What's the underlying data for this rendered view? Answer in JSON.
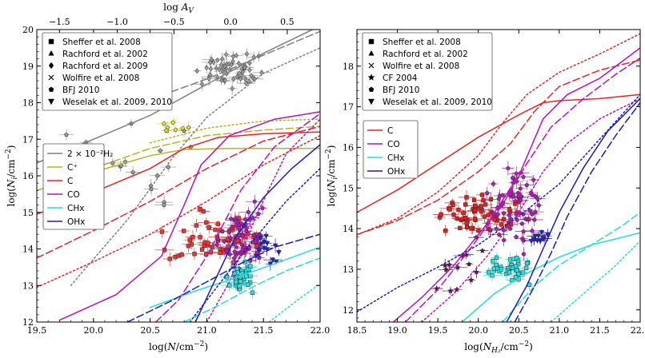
{
  "chart_data": [
    {
      "type": "scatter",
      "panel": "left",
      "xlabel": "log(N/cm⁻²)",
      "ylabel": "log(Nᵢ/cm⁻²)",
      "top_label": "log A_V",
      "xlim": [
        19.5,
        22.0
      ],
      "ylim": [
        12,
        20
      ],
      "top_ticks": [
        {
          "value": 19.7,
          "label": "−1.5"
        },
        {
          "value": 20.21,
          "label": "−1.0"
        },
        {
          "value": 20.71,
          "label": "−0.5"
        },
        {
          "value": 21.21,
          "label": "0.0"
        },
        {
          "value": 21.71,
          "label": "0.5"
        }
      ],
      "x_ticks": [
        "19.5",
        "20.0",
        "20.5",
        "21.0",
        "21.5",
        "22.0"
      ],
      "y_ticks": [
        "12",
        "13",
        "14",
        "15",
        "16",
        "17",
        "18",
        "19",
        "20"
      ],
      "marker_legend": [
        "Sheffer et al. 2008",
        "Rachford et al. 2002",
        "Rachford et al. 2009",
        "Wolfire et al. 2008",
        "BFJ 2010",
        "Weselak et al. 2009, 2010"
      ],
      "species_legend": [
        {
          "name": "2 × 10⁻²H₂",
          "color": "#808080"
        },
        {
          "name": "C⁺",
          "color": "#b5b520"
        },
        {
          "name": "C",
          "color": "#ee2222"
        },
        {
          "name": "CO",
          "color": "#bb11bb"
        },
        {
          "name": "CHx",
          "color": "#22dddd"
        },
        {
          "name": "OHx",
          "color": "#1a1acc"
        }
      ],
      "series": [
        {
          "name": "H2 model",
          "color": "#808080",
          "styles": [
            {
              "style": "solid",
              "x": [
                19.5,
                20.5,
                21.0,
                21.5,
                22.0
              ],
              "y": [
                16.35,
                17.65,
                18.5,
                19.35,
                20.1
              ]
            },
            {
              "style": "dashed",
              "x": [
                20.6,
                21.0,
                21.5,
                22.0
              ],
              "y": [
                18.2,
                18.65,
                19.3,
                19.95
              ]
            },
            {
              "style": "dotted",
              "x": [
                19.8,
                20.3,
                20.7,
                21.0,
                21.5,
                22.0
              ],
              "y": [
                13.0,
                14.8,
                16.5,
                17.6,
                18.8,
                19.5
              ]
            }
          ]
        },
        {
          "name": "C+ model",
          "color": "#b5b520",
          "styles": [
            {
              "style": "solid",
              "x": [
                19.5,
                20.0,
                20.5,
                20.8,
                21.2,
                22.0
              ],
              "y": [
                15.6,
                16.1,
                16.55,
                16.72,
                16.75,
                16.75
              ]
            },
            {
              "style": "dashed",
              "x": [
                20.0,
                20.5,
                21.0,
                21.5,
                22.0
              ],
              "y": [
                16.2,
                16.75,
                17.1,
                17.25,
                17.35
              ]
            },
            {
              "style": "dotted",
              "x": [
                20.5,
                21.0,
                21.5,
                22.0
              ],
              "y": [
                16.9,
                17.3,
                17.5,
                17.55
              ]
            }
          ]
        },
        {
          "name": "C model",
          "color": "#ee2222",
          "styles": [
            {
              "style": "solid",
              "x": [
                19.5,
                20.0,
                20.5,
                20.8,
                21.1,
                21.5,
                22.0
              ],
              "y": [
                14.95,
                15.55,
                16.2,
                16.75,
                17.05,
                17.15,
                17.2
              ]
            },
            {
              "style": "dashed",
              "x": [
                19.5,
                20.0,
                20.5,
                21.0,
                21.5,
                22.0
              ],
              "y": [
                13.75,
                14.5,
                15.3,
                16.2,
                16.95,
                17.35
              ]
            },
            {
              "style": "dotted",
              "x": [
                19.5,
                20.0,
                20.5,
                21.0,
                21.5,
                22.0
              ],
              "y": [
                12.95,
                13.65,
                14.4,
                15.3,
                16.3,
                17.1
              ]
            }
          ]
        },
        {
          "name": "CO model",
          "color": "#bb11bb",
          "styles": [
            {
              "style": "solid",
              "x": [
                19.7,
                20.2,
                20.6,
                20.8,
                20.95,
                21.2,
                21.6,
                22.0
              ],
              "y": [
                12.05,
                12.75,
                13.8,
                15.2,
                16.3,
                17.1,
                17.55,
                17.75
              ]
            },
            {
              "style": "dashed",
              "x": [
                20.55,
                20.75,
                21.0,
                21.3,
                21.6,
                22.0
              ],
              "y": [
                12.0,
                12.6,
                13.8,
                15.6,
                16.8,
                17.7
              ]
            },
            {
              "style": "dotted",
              "x": [
                21.0,
                21.2,
                21.45,
                21.7,
                22.0
              ],
              "y": [
                12.0,
                13.1,
                15.0,
                16.6,
                17.55
              ]
            }
          ]
        },
        {
          "name": "CHx model",
          "color": "#22dddd",
          "styles": [
            {
              "style": "solid",
              "x": [
                20.5,
                20.9,
                21.2,
                21.6,
                22.0
              ],
              "y": [
                12.4,
                12.85,
                13.15,
                13.6,
                14.05
              ]
            },
            {
              "style": "dashed",
              "x": [
                20.8,
                21.1,
                21.4,
                21.7,
                22.0
              ],
              "y": [
                12.0,
                12.45,
                12.95,
                13.4,
                13.75
              ]
            },
            {
              "style": "dotted",
              "x": [
                21.55,
                21.8,
                22.0
              ],
              "y": [
                12.0,
                12.6,
                13.05
              ]
            }
          ]
        },
        {
          "name": "OHx model",
          "color": "#1a1acc",
          "styles": [
            {
              "style": "solid",
              "x": [
                20.9,
                21.05,
                21.25,
                21.5,
                21.75,
                22.0
              ],
              "y": [
                12.0,
                13.0,
                14.3,
                15.4,
                16.2,
                16.85
              ]
            },
            {
              "style": "dashed",
              "x": [
                20.3,
                20.7,
                21.0,
                21.3,
                21.6,
                22.0
              ],
              "y": [
                12.0,
                12.6,
                13.1,
                13.6,
                14.05,
                14.4
              ]
            },
            {
              "style": "dotted",
              "x": [
                20.85,
                21.1,
                21.4,
                21.7,
                22.0
              ],
              "y": [
                12.0,
                13.0,
                14.2,
                15.3,
                16.2
              ]
            }
          ]
        }
      ]
    },
    {
      "type": "scatter",
      "panel": "right",
      "xlabel": "log(N_H₂/cm⁻²)",
      "ylabel": "log(Nᵢ/cm⁻²)",
      "xlim": [
        18.5,
        22.0
      ],
      "ylim": [
        11.7,
        18.9
      ],
      "x_ticks": [
        "18.5",
        "19.0",
        "19.5",
        "20.0",
        "20.5",
        "21.0",
        "21.5",
        "22.0"
      ],
      "y_ticks": [
        "12",
        "13",
        "14",
        "15",
        "16",
        "17",
        "18"
      ],
      "marker_legend": [
        "Sheffer et al. 2008",
        "Rachford et al. 2002",
        "Wolfire et al. 2008",
        "CF 2004",
        "BFJ 2010",
        "Weselak et al. 2009, 2010"
      ],
      "species_legend": [
        {
          "name": "C",
          "color": "#ee2222"
        },
        {
          "name": "CO",
          "color": "#bb11bb"
        },
        {
          "name": "CHx",
          "color": "#22dddd"
        },
        {
          "name": "OHx",
          "color": "#1a1acc"
        }
      ],
      "series": [
        {
          "name": "C model",
          "color": "#ee2222",
          "styles": [
            {
              "style": "solid",
              "x": [
                18.5,
                19.0,
                19.5,
                20.0,
                20.5,
                20.8,
                21.0,
                21.5,
                22.0
              ],
              "y": [
                14.4,
                14.95,
                15.6,
                16.25,
                16.8,
                17.1,
                17.15,
                17.2,
                17.3
              ]
            },
            {
              "style": "dashed",
              "x": [
                18.5,
                19.0,
                19.5,
                20.0,
                20.4,
                20.7,
                21.0,
                21.5,
                22.0
              ],
              "y": [
                13.85,
                14.2,
                14.7,
                15.4,
                16.1,
                16.9,
                17.5,
                17.9,
                18.15
              ]
            },
            {
              "style": "dotted",
              "x": [
                18.5,
                19.0,
                19.5,
                20.0,
                20.3,
                20.6,
                21.0,
                21.5,
                22.0
              ],
              "y": [
                13.85,
                14.25,
                14.9,
                15.8,
                16.6,
                17.3,
                17.85,
                18.3,
                18.8
              ]
            }
          ]
        },
        {
          "name": "CO model",
          "color": "#bb11bb",
          "styles": [
            {
              "style": "solid",
              "x": [
                18.95,
                19.3,
                19.7,
                20.1,
                20.5,
                20.8,
                21.1,
                21.5,
                22.0
              ],
              "y": [
                11.7,
                12.3,
                13.1,
                14.1,
                15.3,
                16.7,
                17.3,
                17.7,
                18.45
              ]
            },
            {
              "style": "dashed",
              "x": [
                19.1,
                19.5,
                19.9,
                20.3,
                20.6,
                20.9,
                21.3,
                21.7,
                22.0
              ],
              "y": [
                11.7,
                12.5,
                13.5,
                14.6,
                15.6,
                16.5,
                17.2,
                17.8,
                18.2
              ]
            },
            {
              "style": "dotted",
              "x": [
                19.3,
                19.7,
                20.1,
                20.5,
                20.8,
                21.1,
                21.5,
                22.0
              ],
              "y": [
                11.7,
                12.4,
                13.3,
                14.4,
                15.4,
                16.1,
                16.7,
                17.2
              ]
            }
          ]
        },
        {
          "name": "CHx model",
          "color": "#22dddd",
          "styles": [
            {
              "style": "solid",
              "x": [
                19.8,
                20.2,
                20.6,
                21.0,
                21.4,
                22.0
              ],
              "y": [
                11.7,
                12.4,
                12.9,
                13.3,
                13.6,
                13.9
              ]
            },
            {
              "style": "dashed",
              "x": [
                20.3,
                20.7,
                21.0,
                21.4,
                21.8,
                22.0
              ],
              "y": [
                11.7,
                12.6,
                13.1,
                13.6,
                14.1,
                14.4
              ]
            },
            {
              "style": "dotted",
              "x": [
                20.9,
                21.3,
                21.7,
                22.0
              ],
              "y": [
                11.7,
                12.4,
                13.1,
                13.7
              ]
            }
          ]
        },
        {
          "name": "OHx model",
          "color": "#1a1acc",
          "styles": [
            {
              "style": "solid",
              "x": [
                20.35,
                20.6,
                20.8,
                21.0,
                21.3,
                21.6,
                22.0
              ],
              "y": [
                11.7,
                12.6,
                13.5,
                14.4,
                15.5,
                16.4,
                17.2
              ]
            },
            {
              "style": "dashed",
              "x": [
                20.45,
                20.7,
                20.9,
                21.1,
                21.4,
                21.7,
                22.0
              ],
              "y": [
                11.7,
                12.6,
                13.4,
                14.3,
                15.4,
                16.3,
                17.1
              ]
            },
            {
              "style": "dotted",
              "x": [
                18.5,
                19.0,
                19.5,
                20.0,
                20.5,
                21.0,
                21.5,
                22.0
              ],
              "y": [
                11.95,
                12.55,
                13.05,
                13.6,
                14.3,
                15.1,
                16.2,
                17.3
              ]
            }
          ]
        }
      ]
    }
  ]
}
